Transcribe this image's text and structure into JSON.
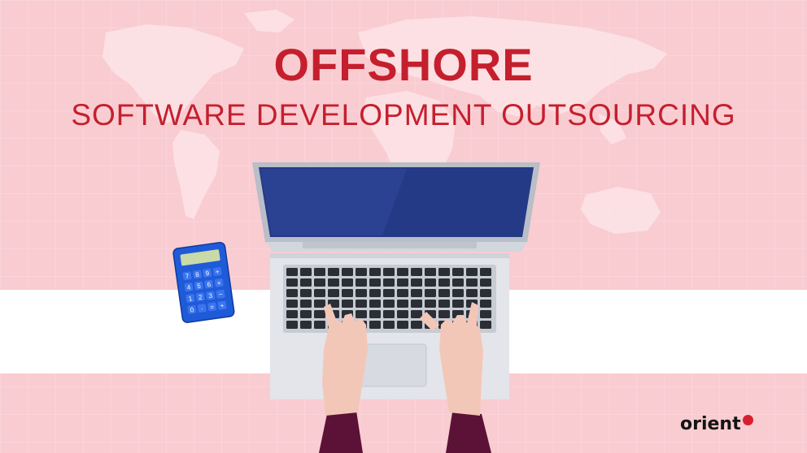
{
  "headline": {
    "line1": "OFFSHORE",
    "line2": "SOFTWARE DEVELOPMENT OUTSOURCING"
  },
  "brand": {
    "name": "orient",
    "accent_color": "#d7202f"
  },
  "colors": {
    "title": "#c51f2e",
    "background": "#f9ccd1",
    "band": "#ffffff"
  },
  "calculator": {
    "keys": [
      "7",
      "8",
      "9",
      "+",
      "4",
      "5",
      "6",
      "×",
      "1",
      "2",
      "3",
      "−",
      "0",
      "·",
      "=",
      "+"
    ]
  }
}
